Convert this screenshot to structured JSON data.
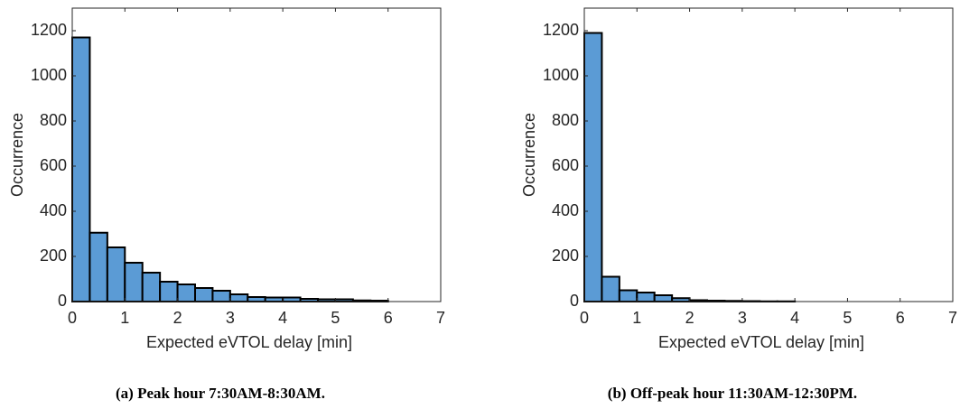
{
  "chart_data": [
    {
      "type": "histogram",
      "xlabel": "Expected eVTOL delay [min]",
      "ylabel": "Occurrence",
      "caption": "(a) Peak hour 7:30AM-8:30AM.",
      "bins": [
        0,
        0.3333,
        0.6667,
        1,
        1.3333,
        1.6667,
        2,
        2.3333,
        2.6667,
        3,
        3.3333,
        3.6667,
        4,
        4.3333,
        4.6667,
        5,
        5.3333,
        5.6667,
        6
      ],
      "values": [
        1170,
        305,
        240,
        172,
        128,
        88,
        76,
        60,
        48,
        32,
        20,
        18,
        18,
        12,
        10,
        10,
        5,
        4
      ],
      "color": "#5b9bd5",
      "xlim": [
        0,
        7
      ],
      "xticks": [
        0,
        1,
        2,
        3,
        4,
        5,
        6,
        7
      ],
      "ylim": [
        0,
        1300
      ],
      "yticks": [
        0,
        200,
        400,
        600,
        800,
        1000,
        1200
      ]
    },
    {
      "type": "histogram",
      "xlabel": "Expected eVTOL delay [min]",
      "ylabel": "Occurrence",
      "caption": "(b) Off-peak hour 11:30AM-12:30PM.",
      "bins": [
        0,
        0.3333,
        0.6667,
        1,
        1.3333,
        1.6667,
        2,
        2.3333,
        2.6667,
        3,
        3.3333,
        3.6667,
        4
      ],
      "values": [
        1190,
        110,
        50,
        40,
        28,
        15,
        6,
        4,
        3,
        2,
        1,
        1
      ],
      "color": "#5b9bd5",
      "xlim": [
        0,
        7
      ],
      "xticks": [
        0,
        1,
        2,
        3,
        4,
        5,
        6,
        7
      ],
      "ylim": [
        0,
        1300
      ],
      "yticks": [
        0,
        200,
        400,
        600,
        800,
        1000,
        1200
      ]
    }
  ]
}
